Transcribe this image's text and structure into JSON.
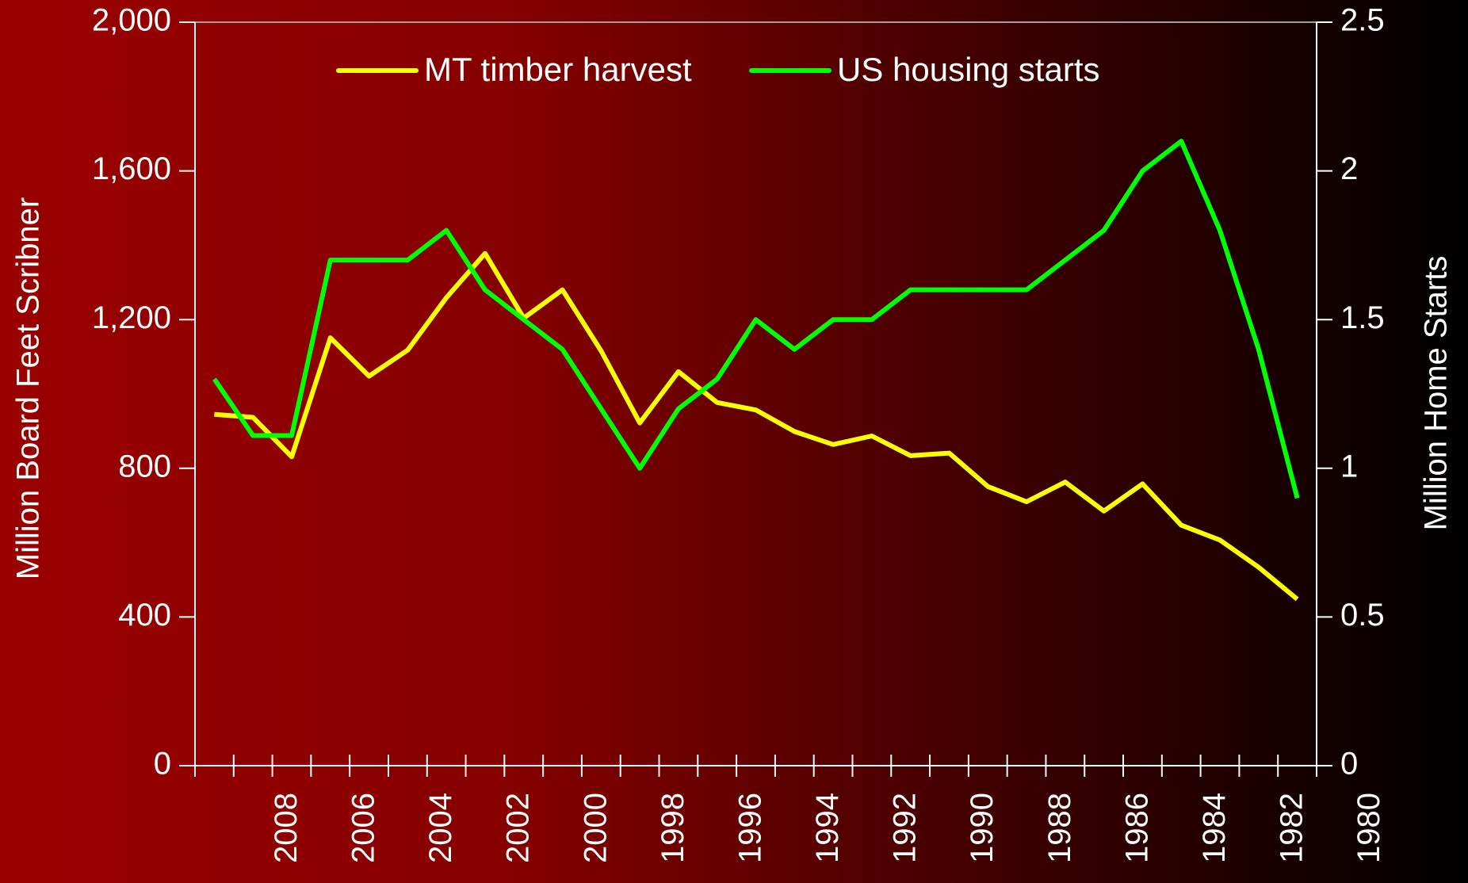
{
  "chart_data": {
    "type": "line",
    "categories": [
      "1980",
      null,
      "1982",
      null,
      "1984",
      null,
      "1986",
      null,
      "1988",
      null,
      "1990",
      null,
      "1992",
      null,
      "1994",
      null,
      "1996",
      null,
      "1998",
      null,
      "2000",
      null,
      "2002",
      null,
      "2004",
      null,
      "2006",
      null,
      "2008"
    ],
    "series": [
      {
        "name": "MT timber harvest",
        "color": "#ffff00",
        "values": [
          945,
          937,
          831,
          1151,
          1048,
          1118,
          1259,
          1378,
          1204,
          1280,
          1116,
          922,
          1060,
          977,
          957,
          899,
          864,
          887,
          834,
          841,
          751,
          710,
          763,
          685,
          758,
          647,
          607,
          534,
          448
        ]
      },
      {
        "name": "US housing starts",
        "color": "#00ff00",
        "axis": "y2",
        "values": [
          1.3,
          1.11,
          1.11,
          1.7,
          1.7,
          1.7,
          1.8,
          1.6,
          1.5,
          1.4,
          1.2,
          1.0,
          1.2,
          1.3,
          1.5,
          1.4,
          1.5,
          1.5,
          1.6,
          1.6,
          1.6,
          1.6,
          1.7,
          1.8,
          2.0,
          2.1,
          1.8,
          1.4,
          0.9
        ]
      }
    ],
    "ylabel": "Million Board Feet Scribner",
    "y2label": "Million Home Starts",
    "ylim": [
      0,
      2000
    ],
    "yticks": [
      0,
      400,
      800,
      {
        "value": 1200,
        "label": "1,200"
      },
      {
        "value": 1600,
        "label": "1,600"
      },
      {
        "value": 2000,
        "label": "2,000"
      }
    ],
    "y2lim": [
      0,
      2.5
    ],
    "y2ticks": [
      0,
      0.5,
      1,
      1.5,
      2,
      2.5
    ],
    "legend": "top"
  }
}
